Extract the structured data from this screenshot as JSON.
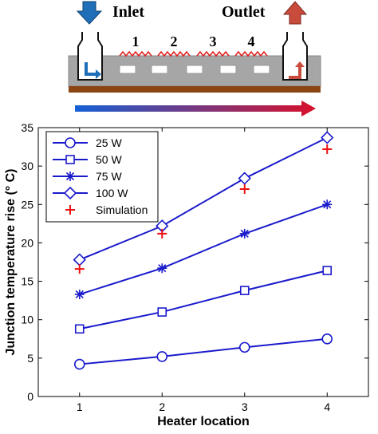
{
  "schematic": {
    "inlet_label": "Inlet",
    "outlet_label": "Outlet",
    "heater_labels": [
      "1",
      "2",
      "3",
      "4"
    ],
    "colors": {
      "inlet_arrow": "#1f6fb8",
      "outlet_arrow": "#c94b3c",
      "substrate": "#a6a6a6",
      "base": "#8b4513",
      "heater": "#e02020",
      "gradient_start": "#1560d6",
      "gradient_end": "#d8102b"
    }
  },
  "chart_data": {
    "type": "line",
    "xlabel": "Heater location",
    "ylabel": "Junction temperature rise (° C)",
    "x": [
      1,
      2,
      3,
      4
    ],
    "xticks": [
      "1",
      "2",
      "3",
      "4"
    ],
    "yticks": [
      "0",
      "5",
      "10",
      "15",
      "20",
      "25",
      "30",
      "35"
    ],
    "xlim": [
      0.5,
      4.5
    ],
    "ylim": [
      0,
      35
    ],
    "grid": false,
    "legend_position": "top-left",
    "series": [
      {
        "name": "25 W",
        "marker": "circle",
        "color": "#1a1acc",
        "values": [
          4.2,
          5.2,
          6.4,
          7.5
        ]
      },
      {
        "name": "50 W",
        "marker": "square",
        "color": "#1a1acc",
        "values": [
          8.8,
          11.0,
          13.8,
          16.4
        ]
      },
      {
        "name": "75 W",
        "marker": "asterisk",
        "color": "#1a1acc",
        "values": [
          13.3,
          16.7,
          21.2,
          25.0
        ]
      },
      {
        "name": "100 W",
        "marker": "diamond",
        "color": "#1a1acc",
        "values": [
          17.8,
          22.2,
          28.4,
          33.7
        ]
      },
      {
        "name": "Simulation",
        "marker": "plus",
        "color": "#ee1111",
        "values": [
          16.6,
          21.2,
          27.0,
          32.2
        ]
      }
    ]
  }
}
